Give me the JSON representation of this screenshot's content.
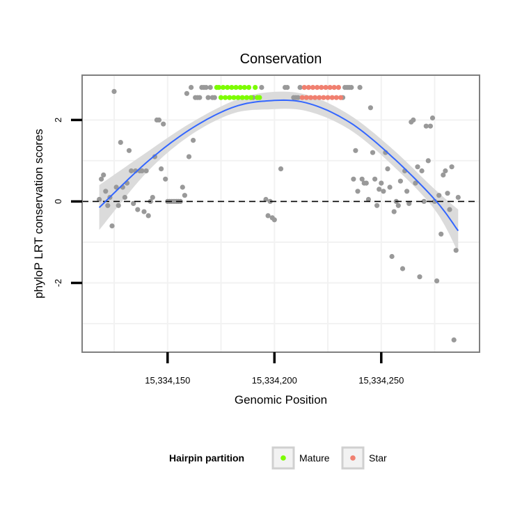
{
  "chart_data": {
    "type": "scatter",
    "title": "Conservation",
    "xlabel": "Genomic Position",
    "ylabel": "phyloP LRT conservation scores",
    "xlim": [
      15334110,
      15334296
    ],
    "ylim": [
      -3.7,
      3.1
    ],
    "x_ticks": [
      15334150,
      15334200,
      15334250
    ],
    "x_tick_labels": [
      "15,334,150",
      "15,334,200",
      "15,334,250"
    ],
    "y_ticks": [
      2,
      0,
      -2
    ],
    "y_tick_labels": [
      "2",
      "0",
      "-2"
    ],
    "reference_line": {
      "y": 0,
      "style": "dashed"
    },
    "colors": {
      "other": "#999999",
      "mature": "#7cfc00",
      "star": "#f08070",
      "smooth": "#3366ff",
      "ribbon": "#d9d9d9",
      "panel_border": "#7f7f7f",
      "grid": "#f2f2f2"
    },
    "smooth": {
      "x": [
        15334118,
        15334140,
        15334160,
        15334180,
        15334197,
        15334215,
        15334235,
        15334255,
        15334275,
        15334286
      ],
      "y": [
        -0.15,
        0.95,
        1.75,
        2.3,
        2.47,
        2.42,
        1.95,
        1.1,
        0.05,
        -0.72
      ],
      "lower": [
        -0.7,
        0.7,
        1.6,
        2.15,
        2.26,
        2.22,
        1.77,
        0.9,
        -0.2,
        -1.25
      ],
      "upper": [
        0.4,
        1.2,
        1.9,
        2.45,
        2.68,
        2.62,
        2.13,
        1.3,
        0.3,
        -0.2
      ]
    },
    "series": [
      {
        "name": "other",
        "points": [
          [
            15334118,
            0.05
          ],
          [
            15334119,
            0.55
          ],
          [
            15334120,
            0.65
          ],
          [
            15334121,
            0.25
          ],
          [
            15334122,
            -0.1
          ],
          [
            15334123,
            0.1
          ],
          [
            15334124,
            -0.6
          ],
          [
            15334125,
            2.7
          ],
          [
            15334126,
            0.35
          ],
          [
            15334127,
            -0.1
          ],
          [
            15334128,
            1.45
          ],
          [
            15334129,
            0.35
          ],
          [
            15334130,
            0.1
          ],
          [
            15334131,
            0.45
          ],
          [
            15334132,
            1.25
          ],
          [
            15334133,
            0.75
          ],
          [
            15334134,
            -0.05
          ],
          [
            15334135,
            0.75
          ],
          [
            15334136,
            -0.2
          ],
          [
            15334137,
            0.75
          ],
          [
            15334138,
            0.75
          ],
          [
            15334139,
            -0.25
          ],
          [
            15334140,
            0.75
          ],
          [
            15334141,
            -0.35
          ],
          [
            15334142,
            0.0
          ],
          [
            15334143,
            0.1
          ],
          [
            15334144,
            1.1
          ],
          [
            15334145,
            2.0
          ],
          [
            15334146,
            2.0
          ],
          [
            15334147,
            0.8
          ],
          [
            15334148,
            1.9
          ],
          [
            15334149,
            0.55
          ],
          [
            15334150,
            0.0
          ],
          [
            15334151,
            0.0
          ],
          [
            15334152,
            0.0
          ],
          [
            15334153,
            0.0
          ],
          [
            15334154,
            0.0
          ],
          [
            15334155,
            0.0
          ],
          [
            15334156,
            0.0
          ],
          [
            15334157,
            0.35
          ],
          [
            15334158,
            0.15
          ],
          [
            15334159,
            2.65
          ],
          [
            15334160,
            1.1
          ],
          [
            15334161,
            2.8
          ],
          [
            15334162,
            1.5
          ],
          [
            15334163,
            2.55
          ],
          [
            15334164,
            2.55
          ],
          [
            15334165,
            2.55
          ],
          [
            15334166,
            2.8
          ],
          [
            15334167,
            2.8
          ],
          [
            15334168,
            2.8
          ],
          [
            15334169,
            2.55
          ],
          [
            15334170,
            2.8
          ],
          [
            15334171,
            2.55
          ],
          [
            15334172,
            2.55
          ],
          [
            15334190,
            2.55
          ],
          [
            15334194,
            2.8
          ],
          [
            15334196,
            0.05
          ],
          [
            15334197,
            -0.35
          ],
          [
            15334198,
            0.0
          ],
          [
            15334199,
            -0.4
          ],
          [
            15334200,
            -0.45
          ],
          [
            15334203,
            0.8
          ],
          [
            15334205,
            2.8
          ],
          [
            15334206,
            2.8
          ],
          [
            15334209,
            2.55
          ],
          [
            15334210,
            2.55
          ],
          [
            15334211,
            2.55
          ],
          [
            15334212,
            2.8
          ],
          [
            15334232,
            2.55
          ],
          [
            15334233,
            2.8
          ],
          [
            15334234,
            2.8
          ],
          [
            15334235,
            2.8
          ],
          [
            15334236,
            2.8
          ],
          [
            15334237,
            0.55
          ],
          [
            15334238,
            1.25
          ],
          [
            15334239,
            0.25
          ],
          [
            15334240,
            2.8
          ],
          [
            15334241,
            0.55
          ],
          [
            15334242,
            0.45
          ],
          [
            15334243,
            0.45
          ],
          [
            15334244,
            0.05
          ],
          [
            15334245,
            2.3
          ],
          [
            15334246,
            1.2
          ],
          [
            15334247,
            0.55
          ],
          [
            15334248,
            -0.1
          ],
          [
            15334249,
            0.3
          ],
          [
            15334250,
            0.45
          ],
          [
            15334251,
            0.25
          ],
          [
            15334252,
            1.2
          ],
          [
            15334253,
            0.8
          ],
          [
            15334254,
            0.35
          ],
          [
            15334255,
            -1.35
          ],
          [
            15334256,
            -0.25
          ],
          [
            15334257,
            0.0
          ],
          [
            15334258,
            -0.1
          ],
          [
            15334259,
            0.5
          ],
          [
            15334260,
            -1.65
          ],
          [
            15334261,
            0.75
          ],
          [
            15334262,
            0.25
          ],
          [
            15334263,
            -0.05
          ],
          [
            15334264,
            1.95
          ],
          [
            15334265,
            2.0
          ],
          [
            15334266,
            0.45
          ],
          [
            15334267,
            0.85
          ],
          [
            15334268,
            -1.85
          ],
          [
            15334269,
            0.75
          ],
          [
            15334270,
            0.0
          ],
          [
            15334271,
            1.85
          ],
          [
            15334272,
            1.0
          ],
          [
            15334273,
            1.85
          ],
          [
            15334274,
            2.05
          ],
          [
            15334275,
            0.0
          ],
          [
            15334276,
            -1.95
          ],
          [
            15334277,
            0.15
          ],
          [
            15334278,
            -0.8
          ],
          [
            15334279,
            0.65
          ],
          [
            15334280,
            0.75
          ],
          [
            15334281,
            0.2
          ],
          [
            15334282,
            -0.2
          ],
          [
            15334283,
            0.85
          ],
          [
            15334284,
            -3.4
          ],
          [
            15334285,
            -1.2
          ],
          [
            15334286,
            0.1
          ]
        ]
      },
      {
        "name": "Mature",
        "points": [
          [
            15334173,
            2.8
          ],
          [
            15334174,
            2.8
          ],
          [
            15334175,
            2.55
          ],
          [
            15334176,
            2.8
          ],
          [
            15334177,
            2.55
          ],
          [
            15334178,
            2.8
          ],
          [
            15334179,
            2.55
          ],
          [
            15334180,
            2.8
          ],
          [
            15334181,
            2.55
          ],
          [
            15334182,
            2.8
          ],
          [
            15334183,
            2.55
          ],
          [
            15334184,
            2.8
          ],
          [
            15334185,
            2.55
          ],
          [
            15334186,
            2.8
          ],
          [
            15334187,
            2.55
          ],
          [
            15334188,
            2.8
          ],
          [
            15334189,
            2.55
          ],
          [
            15334191,
            2.8
          ],
          [
            15334192,
            2.55
          ],
          [
            15334193,
            2.55
          ]
        ]
      },
      {
        "name": "Star",
        "points": [
          [
            15334213,
            2.55
          ],
          [
            15334214,
            2.8
          ],
          [
            15334215,
            2.55
          ],
          [
            15334216,
            2.8
          ],
          [
            15334217,
            2.55
          ],
          [
            15334218,
            2.8
          ],
          [
            15334219,
            2.55
          ],
          [
            15334220,
            2.8
          ],
          [
            15334221,
            2.55
          ],
          [
            15334222,
            2.8
          ],
          [
            15334223,
            2.55
          ],
          [
            15334224,
            2.8
          ],
          [
            15334225,
            2.55
          ],
          [
            15334226,
            2.8
          ],
          [
            15334227,
            2.55
          ],
          [
            15334228,
            2.8
          ],
          [
            15334229,
            2.55
          ],
          [
            15334230,
            2.8
          ],
          [
            15334231,
            2.55
          ]
        ]
      }
    ],
    "legend": {
      "title": "Hairpin partition",
      "position": "bottom",
      "entries": [
        {
          "label": "Mature",
          "color": "#7cfc00"
        },
        {
          "label": "Star",
          "color": "#f08070"
        }
      ]
    }
  }
}
